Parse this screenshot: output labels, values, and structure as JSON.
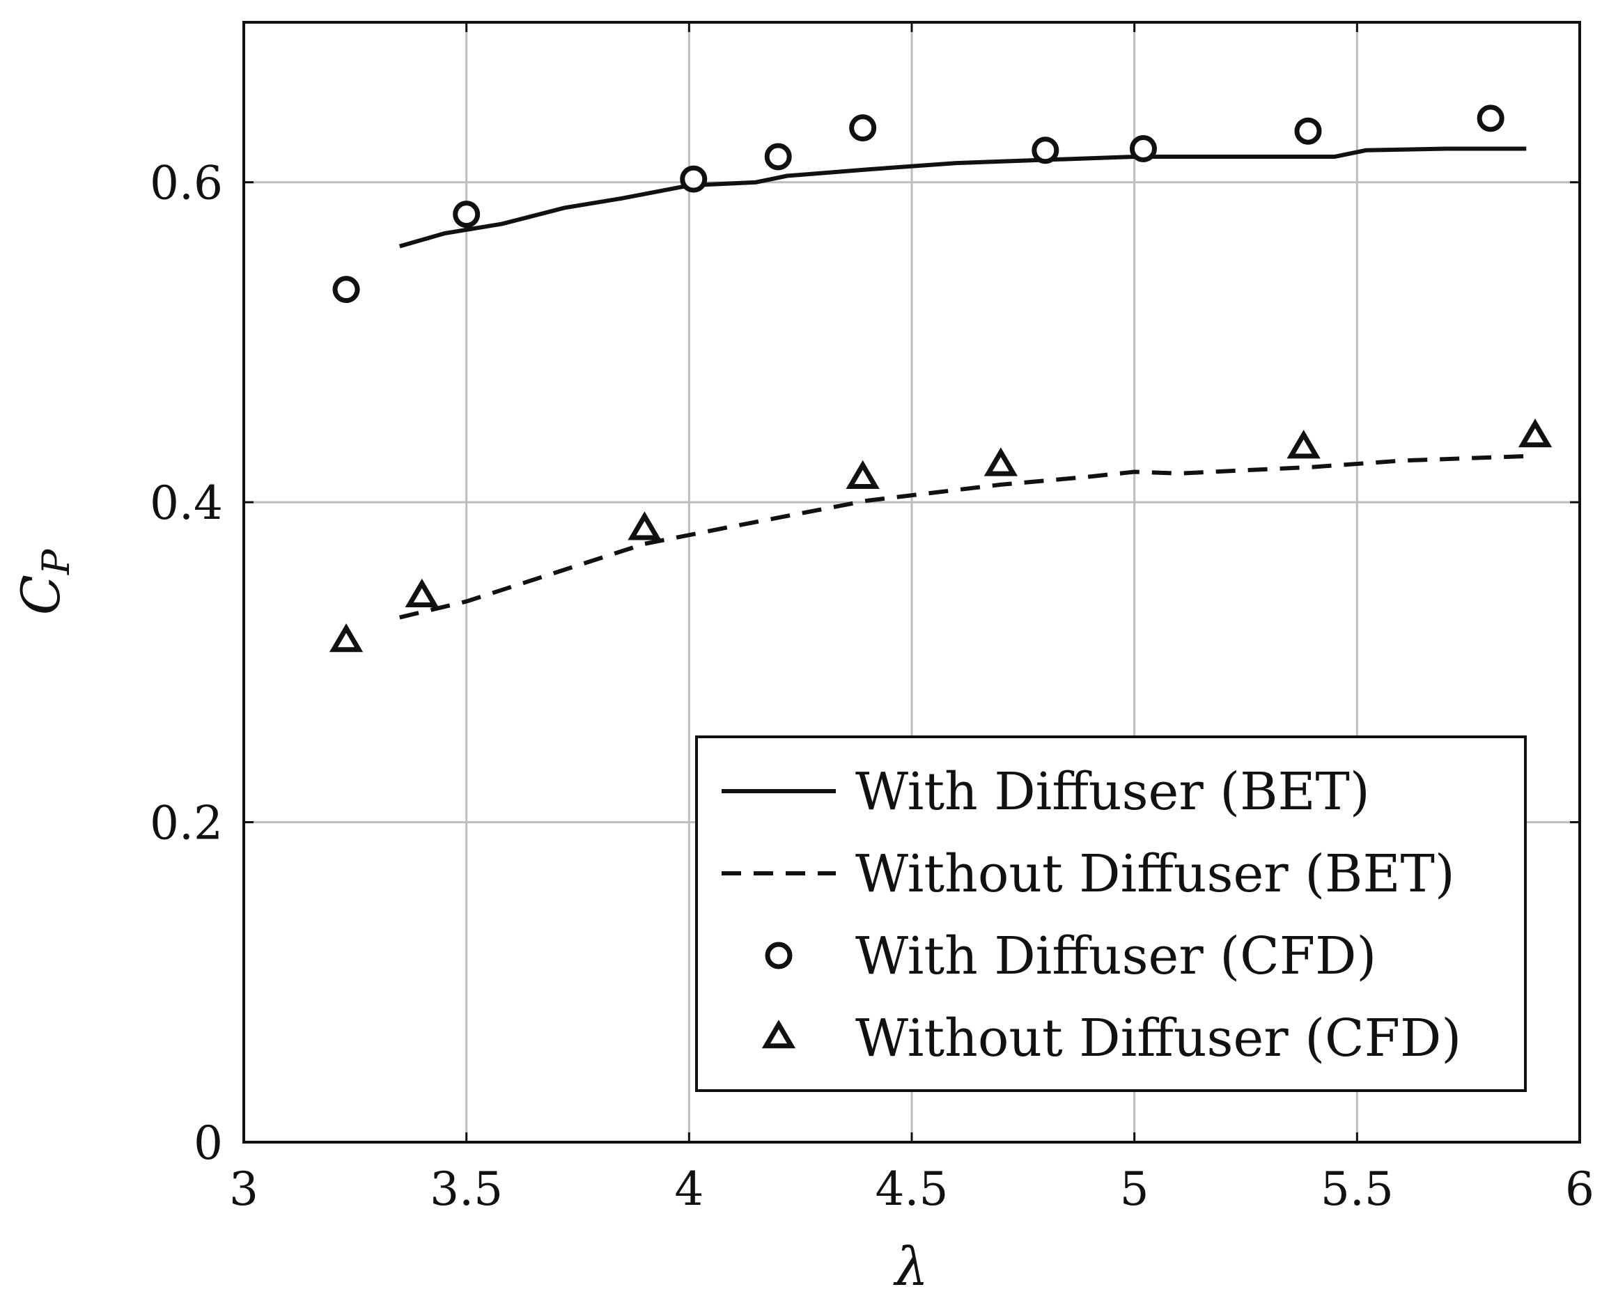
{
  "chart_data": {
    "type": "line",
    "xlabel": "λ",
    "ylabel_main": "C",
    "ylabel_sub": "P",
    "xlim": [
      3,
      6
    ],
    "ylim": [
      0,
      0.7
    ],
    "xticks": [
      3,
      3.5,
      4,
      4.5,
      5,
      5.5,
      6
    ],
    "xtick_labels": [
      "3",
      "3.5",
      "4",
      "4.5",
      "5",
      "5.5",
      "6"
    ],
    "yticks": [
      0,
      0.2,
      0.4,
      0.6
    ],
    "ytick_labels": [
      "0",
      "0.2",
      "0.4",
      "0.6"
    ],
    "grid": true,
    "legend_position": "bottom-right",
    "series": [
      {
        "name": "With Diffuser (BET)",
        "style": "solid-line",
        "x": [
          3.35,
          3.45,
          3.58,
          3.72,
          3.85,
          4.0,
          4.15,
          4.22,
          4.4,
          4.6,
          4.8,
          5.0,
          5.2,
          5.45,
          5.52,
          5.7,
          5.88
        ],
        "y": [
          0.56,
          0.568,
          0.574,
          0.584,
          0.59,
          0.598,
          0.6,
          0.604,
          0.608,
          0.612,
          0.614,
          0.616,
          0.616,
          0.616,
          0.62,
          0.621,
          0.621
        ]
      },
      {
        "name": "Without Diffuser (BET)",
        "style": "dashed-line",
        "x": [
          3.35,
          3.5,
          3.7,
          3.9,
          4.1,
          4.4,
          4.7,
          4.9,
          5.0,
          5.1,
          5.4,
          5.6,
          5.9
        ],
        "y": [
          0.328,
          0.338,
          0.356,
          0.374,
          0.385,
          0.401,
          0.411,
          0.416,
          0.419,
          0.418,
          0.422,
          0.426,
          0.429
        ]
      },
      {
        "name": "With Diffuser (CFD)",
        "style": "circle-marker",
        "x": [
          3.23,
          3.5,
          4.01,
          4.2,
          4.39,
          4.8,
          5.02,
          5.39,
          5.8
        ],
        "y": [
          0.533,
          0.58,
          0.602,
          0.616,
          0.634,
          0.62,
          0.621,
          0.632,
          0.64
        ]
      },
      {
        "name": "Without Diffuser (CFD)",
        "style": "triangle-marker",
        "x": [
          3.23,
          3.4,
          3.9,
          4.39,
          4.7,
          5.38,
          5.9
        ],
        "y": [
          0.313,
          0.341,
          0.383,
          0.415,
          0.423,
          0.434,
          0.441
        ]
      }
    ]
  }
}
